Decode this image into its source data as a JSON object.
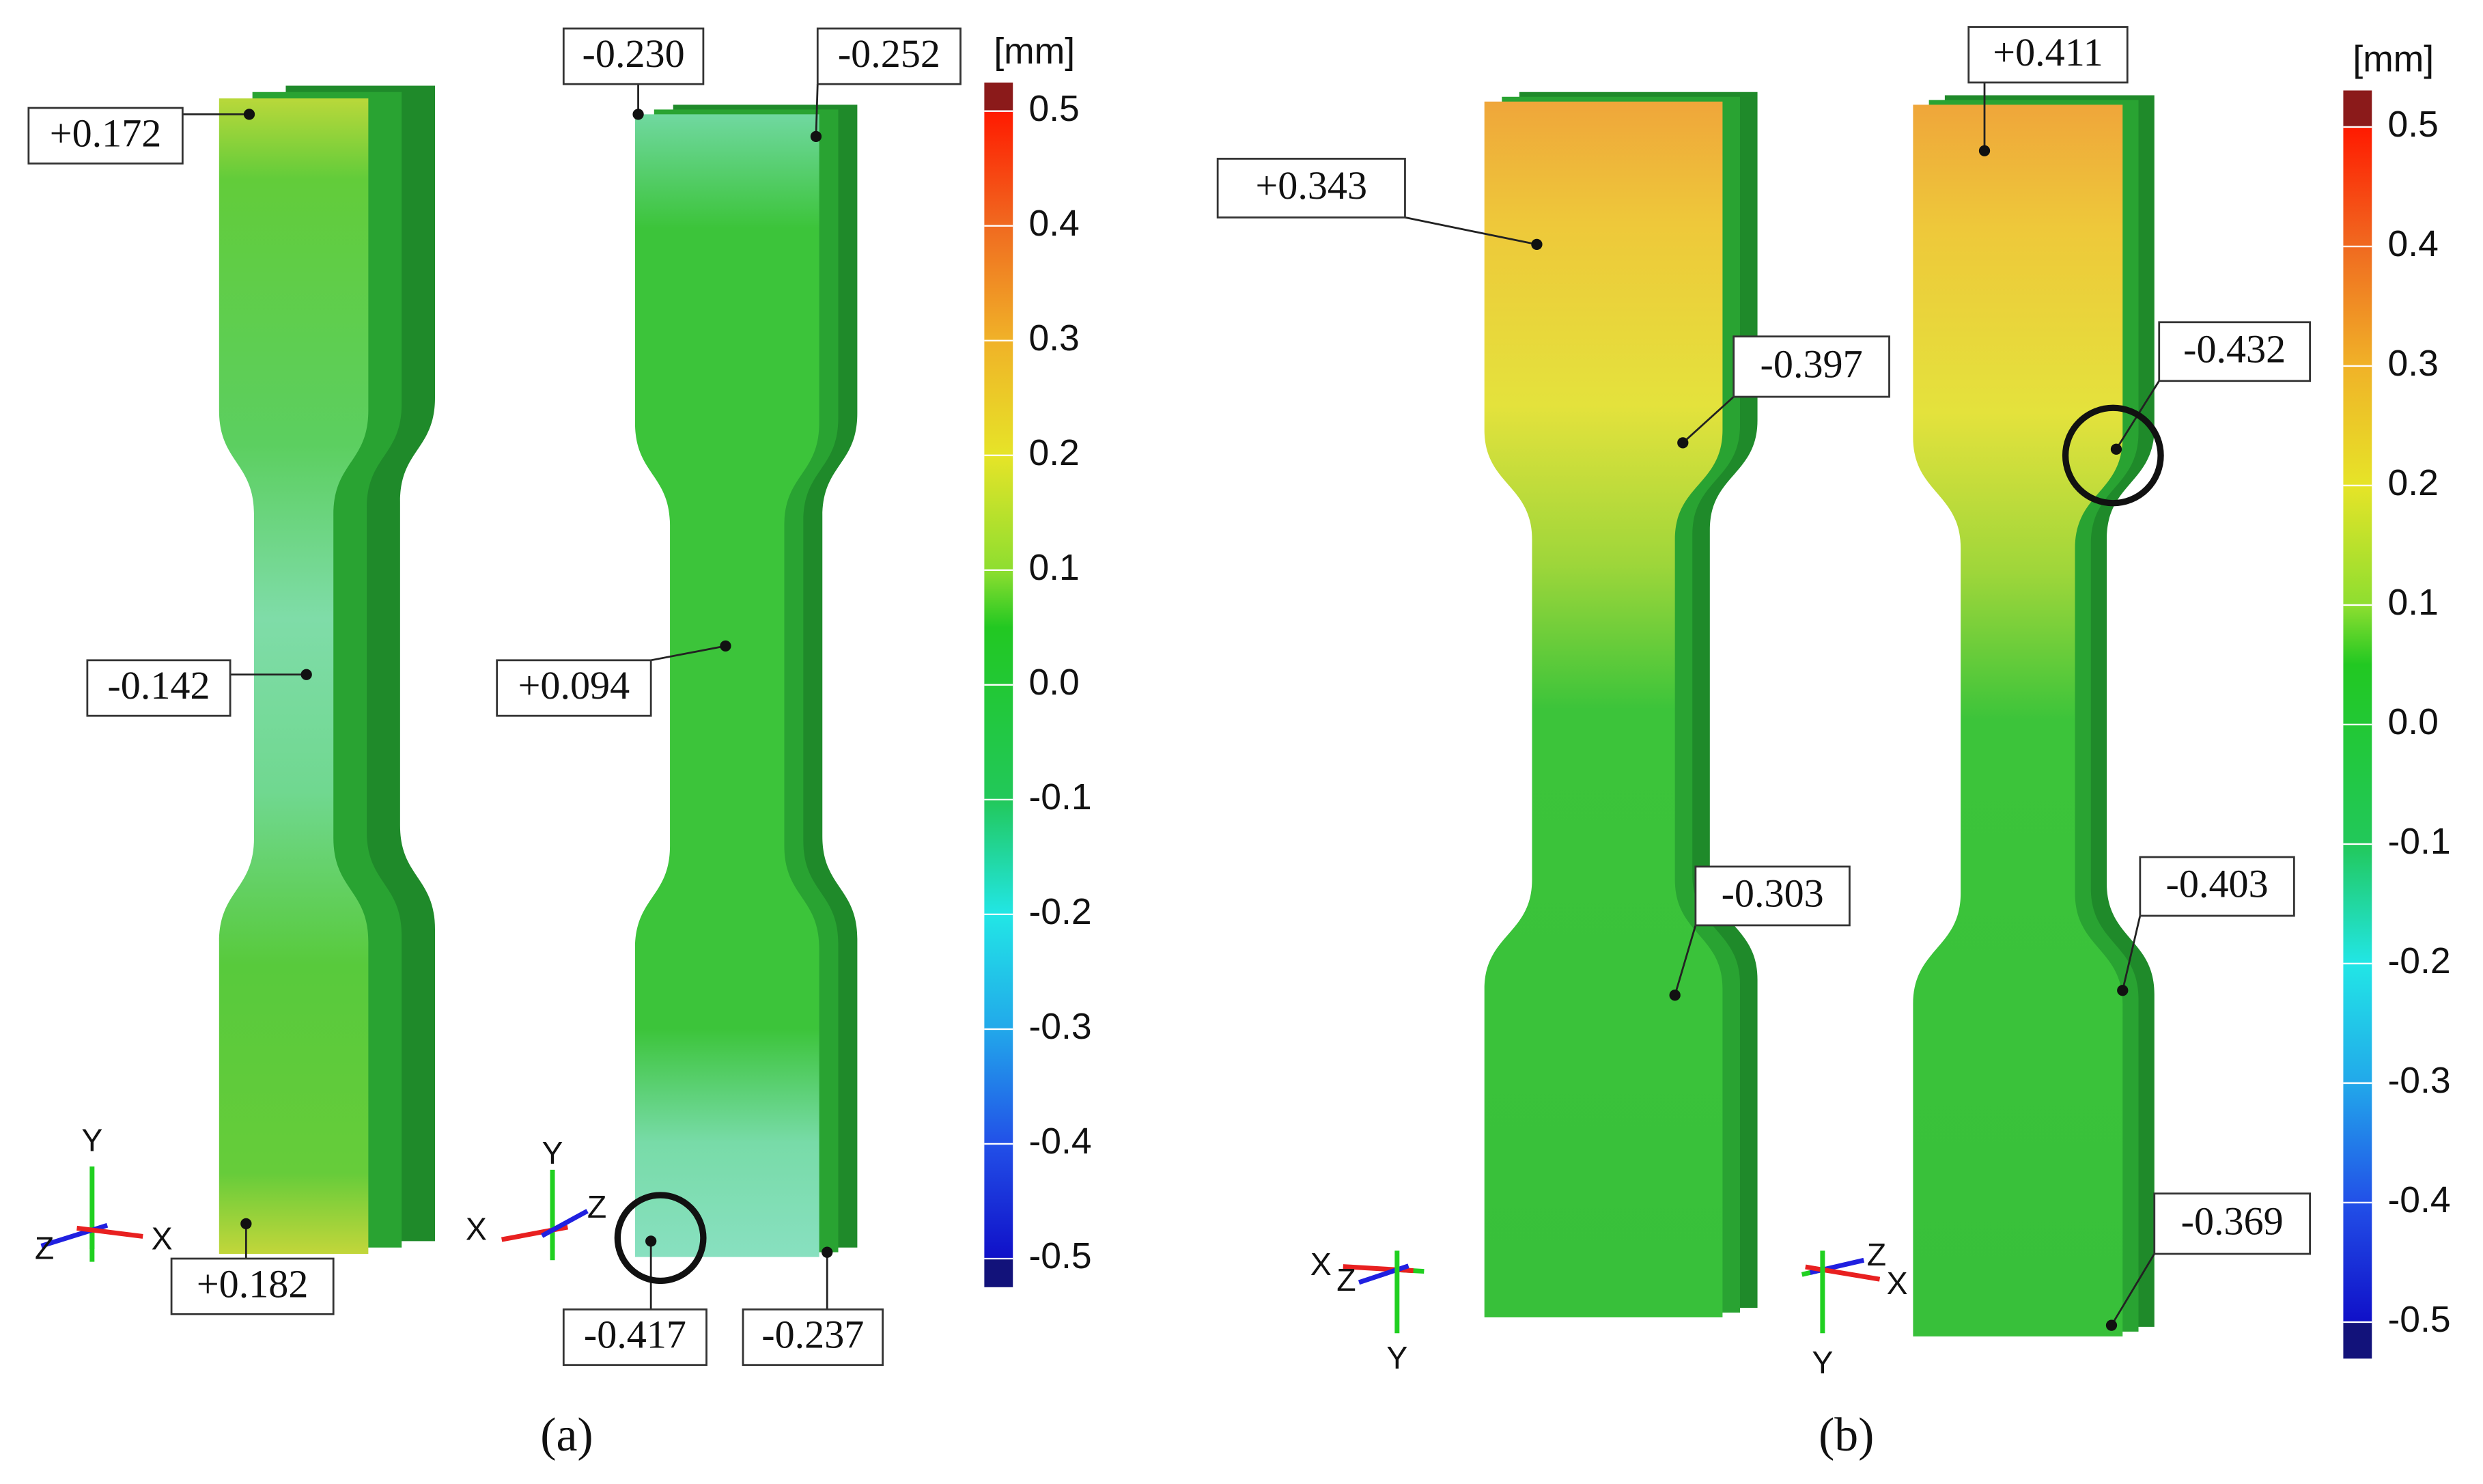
{
  "panels": [
    {
      "label": "(a)",
      "colorbar": {
        "unit": "[mm]",
        "ticks": [
          "0.5",
          "0.4",
          "0.3",
          "0.2",
          "0.1",
          "0.0",
          "-0.1",
          "-0.2",
          "-0.3",
          "-0.4",
          "-0.5"
        ]
      },
      "callouts": [
        "+0.172",
        "-0.230",
        "-0.252",
        "-0.142",
        "+0.094",
        "+0.182",
        "-0.417",
        "-0.237"
      ],
      "axes": [
        [
          "Y",
          "Z",
          "X"
        ],
        [
          "Y",
          "X",
          "Z"
        ]
      ]
    },
    {
      "label": "(b)",
      "colorbar": {
        "unit": "[mm]",
        "ticks": [
          "0.5",
          "0.4",
          "0.3",
          "0.2",
          "0.1",
          "0.0",
          "-0.1",
          "-0.2",
          "-0.3",
          "-0.4",
          "-0.5"
        ]
      },
      "callouts": [
        "+0.343",
        "+0.411",
        "-0.397",
        "-0.432",
        "-0.303",
        "-0.403",
        "-0.369"
      ],
      "axes": [
        [
          "X",
          "Z",
          "Y"
        ],
        [
          "Z",
          "X",
          "Y"
        ]
      ]
    }
  ]
}
